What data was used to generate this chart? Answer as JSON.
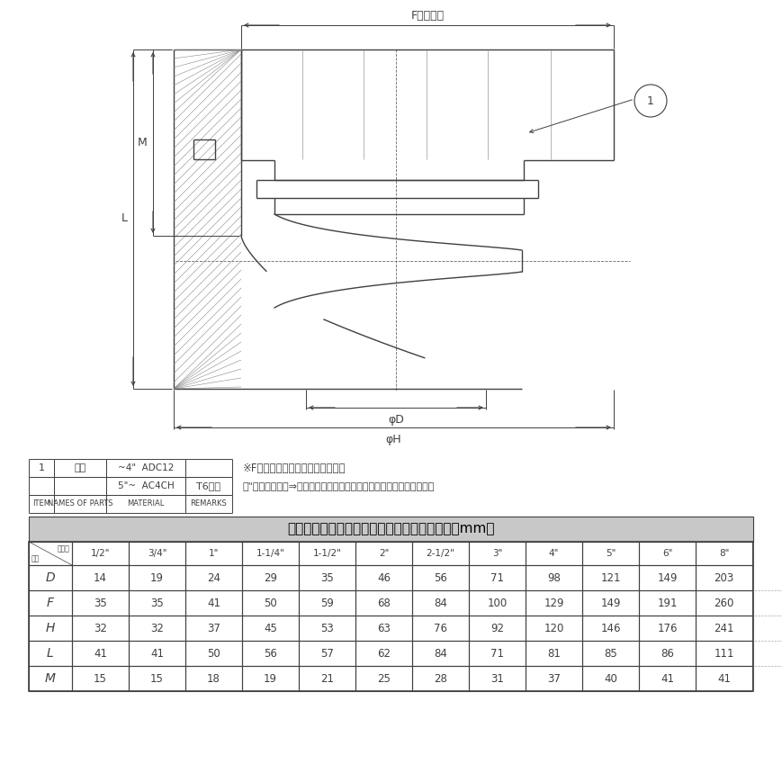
{
  "title": "６３３－ＡＢ　ＡＬ　サイズ別寸法表（単位：mm）",
  "bg_color": "#ffffff",
  "line_color": "#404040",
  "table_header_row": [
    "",
    "1/2\"",
    "3/4\"",
    "1\"",
    "1-1/4\"",
    "1-1/2\"",
    "2\"",
    "2-1/2\"",
    "3\"",
    "4\"",
    "5\"",
    "6\"",
    "8\""
  ],
  "table_rows": [
    [
      "D",
      "14",
      "19",
      "24",
      "29",
      "35",
      "46",
      "56",
      "71",
      "98",
      "121",
      "149",
      "203"
    ],
    [
      "F",
      "35",
      "35",
      "41",
      "50",
      "59",
      "68",
      "84",
      "100",
      "129",
      "149",
      "191",
      "260"
    ],
    [
      "H",
      "32",
      "32",
      "37",
      "45",
      "53",
      "63",
      "76",
      "92",
      "120",
      "146",
      "176",
      "241"
    ],
    [
      "L",
      "41",
      "41",
      "50",
      "56",
      "57",
      "62",
      "84",
      "71",
      "81",
      "85",
      "86",
      "111"
    ],
    [
      "M",
      "15",
      "15",
      "18",
      "19",
      "21",
      "25",
      "28",
      "31",
      "37",
      "40",
      "41",
      "41"
    ]
  ],
  "note1": "※F（対辺）部形状・寸法について",
  "note2": "６\"以上は多角形⇒円となり、突起部（スパナ掛け部）寸法となります",
  "dim_F": "F（対辺）",
  "dim_L": "L",
  "dim_M": "M",
  "dim_phiD": "φD",
  "dim_phiH": "φH",
  "lc": "#404040",
  "hatch_color": "#888888",
  "gray_bg": "#c8c8c8"
}
